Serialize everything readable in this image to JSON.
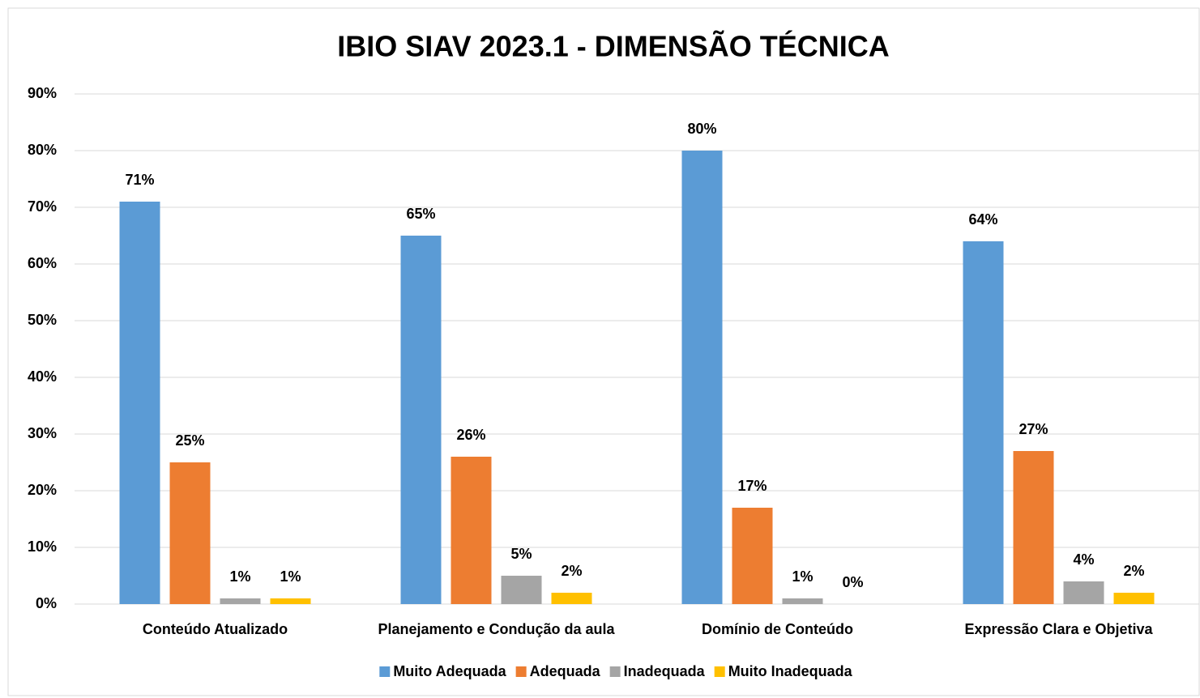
{
  "chart_data": {
    "type": "bar",
    "title": "IBIO SIAV 2023.1 - DIMENSÃO TÉCNICA",
    "categories": [
      "Conteúdo Atualizado",
      "Planejamento e Condução da aula",
      "Domínio de Conteúdo",
      "Expressão Clara e Objetiva"
    ],
    "series": [
      {
        "name": "Muito Adequada",
        "color": "#5b9bd5",
        "values": [
          71,
          65,
          80,
          64
        ],
        "value_labels": [
          "71%",
          "65%",
          "80%",
          "64%"
        ]
      },
      {
        "name": "Adequada",
        "color": "#ed7d31",
        "values": [
          25,
          26,
          17,
          27
        ],
        "value_labels": [
          "25%",
          "26%",
          "17%",
          "27%"
        ]
      },
      {
        "name": "Inadequada",
        "color": "#a5a5a5",
        "values": [
          1,
          5,
          1,
          4
        ],
        "value_labels": [
          "1%",
          "5%",
          "1%",
          "4%"
        ]
      },
      {
        "name": "Muito Inadequada",
        "color": "#ffc000",
        "values": [
          1,
          2,
          0,
          2
        ],
        "value_labels": [
          "1%",
          "2%",
          "0%",
          "2%"
        ]
      }
    ],
    "ylim": [
      0,
      90
    ],
    "yticks": [
      {
        "value": 0,
        "label": "0%"
      },
      {
        "value": 10,
        "label": "10%"
      },
      {
        "value": 20,
        "label": "20%"
      },
      {
        "value": 30,
        "label": "30%"
      },
      {
        "value": 40,
        "label": "40%"
      },
      {
        "value": 50,
        "label": "50%"
      },
      {
        "value": 60,
        "label": "60%"
      },
      {
        "value": 70,
        "label": "70%"
      },
      {
        "value": 80,
        "label": "80%"
      },
      {
        "value": 90,
        "label": "90%"
      }
    ],
    "grid": true,
    "legend": "bottom"
  }
}
